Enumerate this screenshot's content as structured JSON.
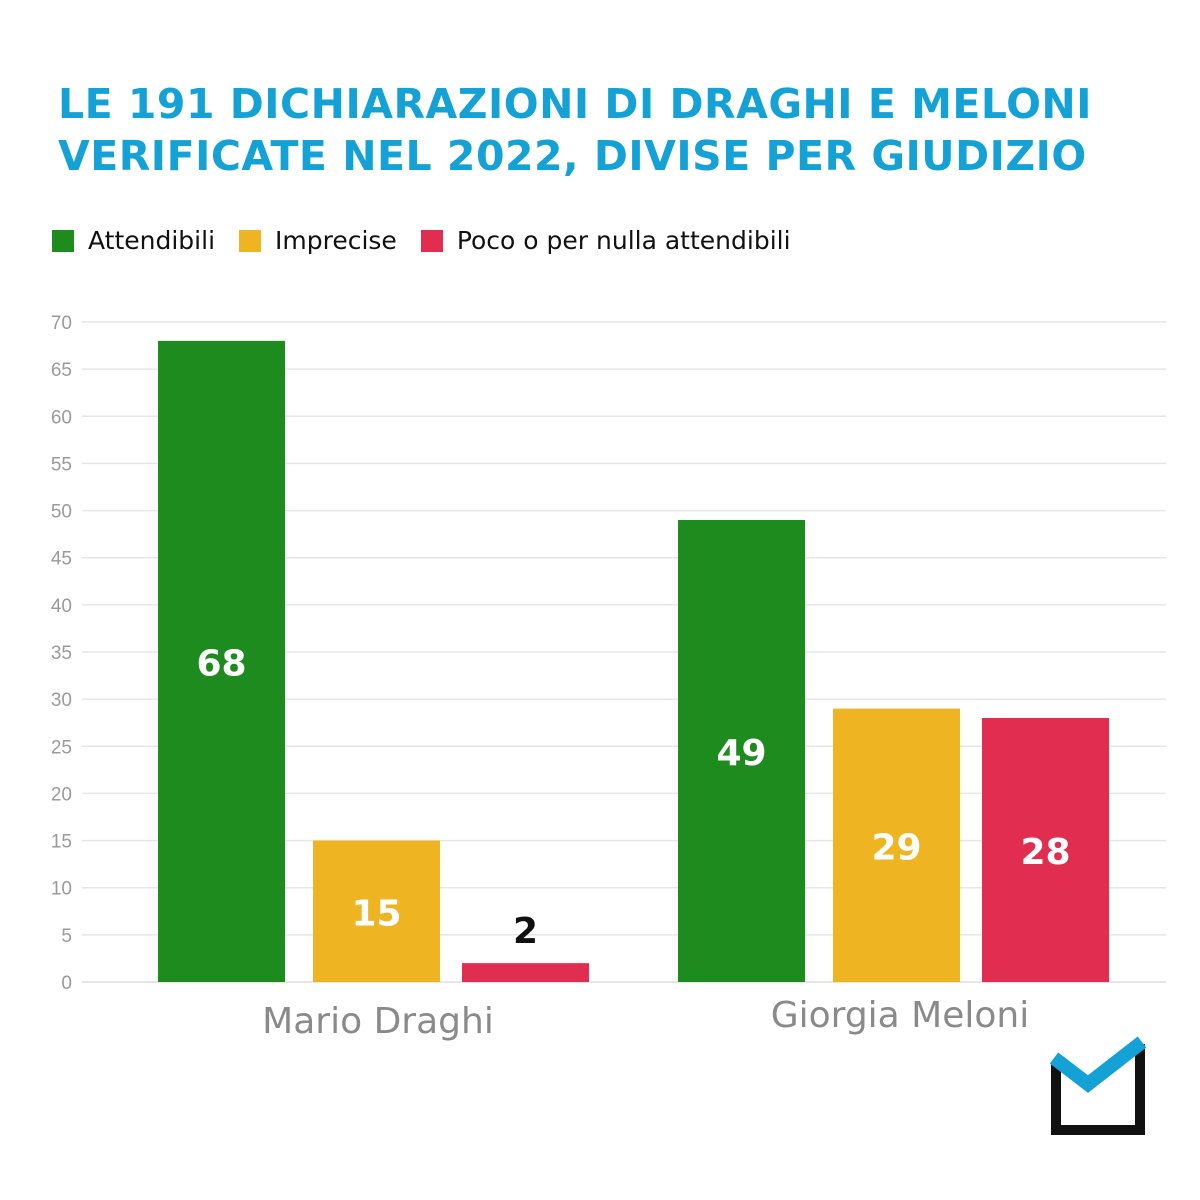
{
  "title_lines": [
    "LE 191 DICHIARAZIONI DI DRAGHI E MELONI",
    "VERIFICATE NEL 2022, DIVISE PER GIUDIZIO"
  ],
  "colors": {
    "title": "#14a1d5",
    "grid": "#e6e6e6",
    "tick": "#9a9a9a",
    "category": "#8a8a8a"
  },
  "chart_data": {
    "type": "bar",
    "title": "LE 191 DICHIARAZIONI DI DRAGHI E MELONI VERIFICATE NEL 2022, DIVISE PER GIUDIZIO",
    "categories": [
      "Mario Draghi",
      "Giorgia Meloni"
    ],
    "series": [
      {
        "name": "Attendibili",
        "color": "#1e8b1e",
        "values": [
          68,
          49
        ]
      },
      {
        "name": "Imprecise",
        "color": "#efb421",
        "values": [
          15,
          29
        ]
      },
      {
        "name": "Poco o per nulla attendibili",
        "color": "#e02d50",
        "values": [
          2,
          28
        ]
      }
    ],
    "ylim": [
      0,
      70
    ],
    "yticks": [
      0,
      5,
      10,
      15,
      20,
      25,
      30,
      35,
      40,
      45,
      50,
      55,
      60,
      65,
      70
    ],
    "xlabel": "",
    "ylabel": "",
    "grid": true,
    "legend_position": "top-left",
    "data_labels": true
  },
  "logo": {
    "name": "checkmark-box-logo",
    "colors": [
      "#14a1d5",
      "#111111"
    ]
  }
}
